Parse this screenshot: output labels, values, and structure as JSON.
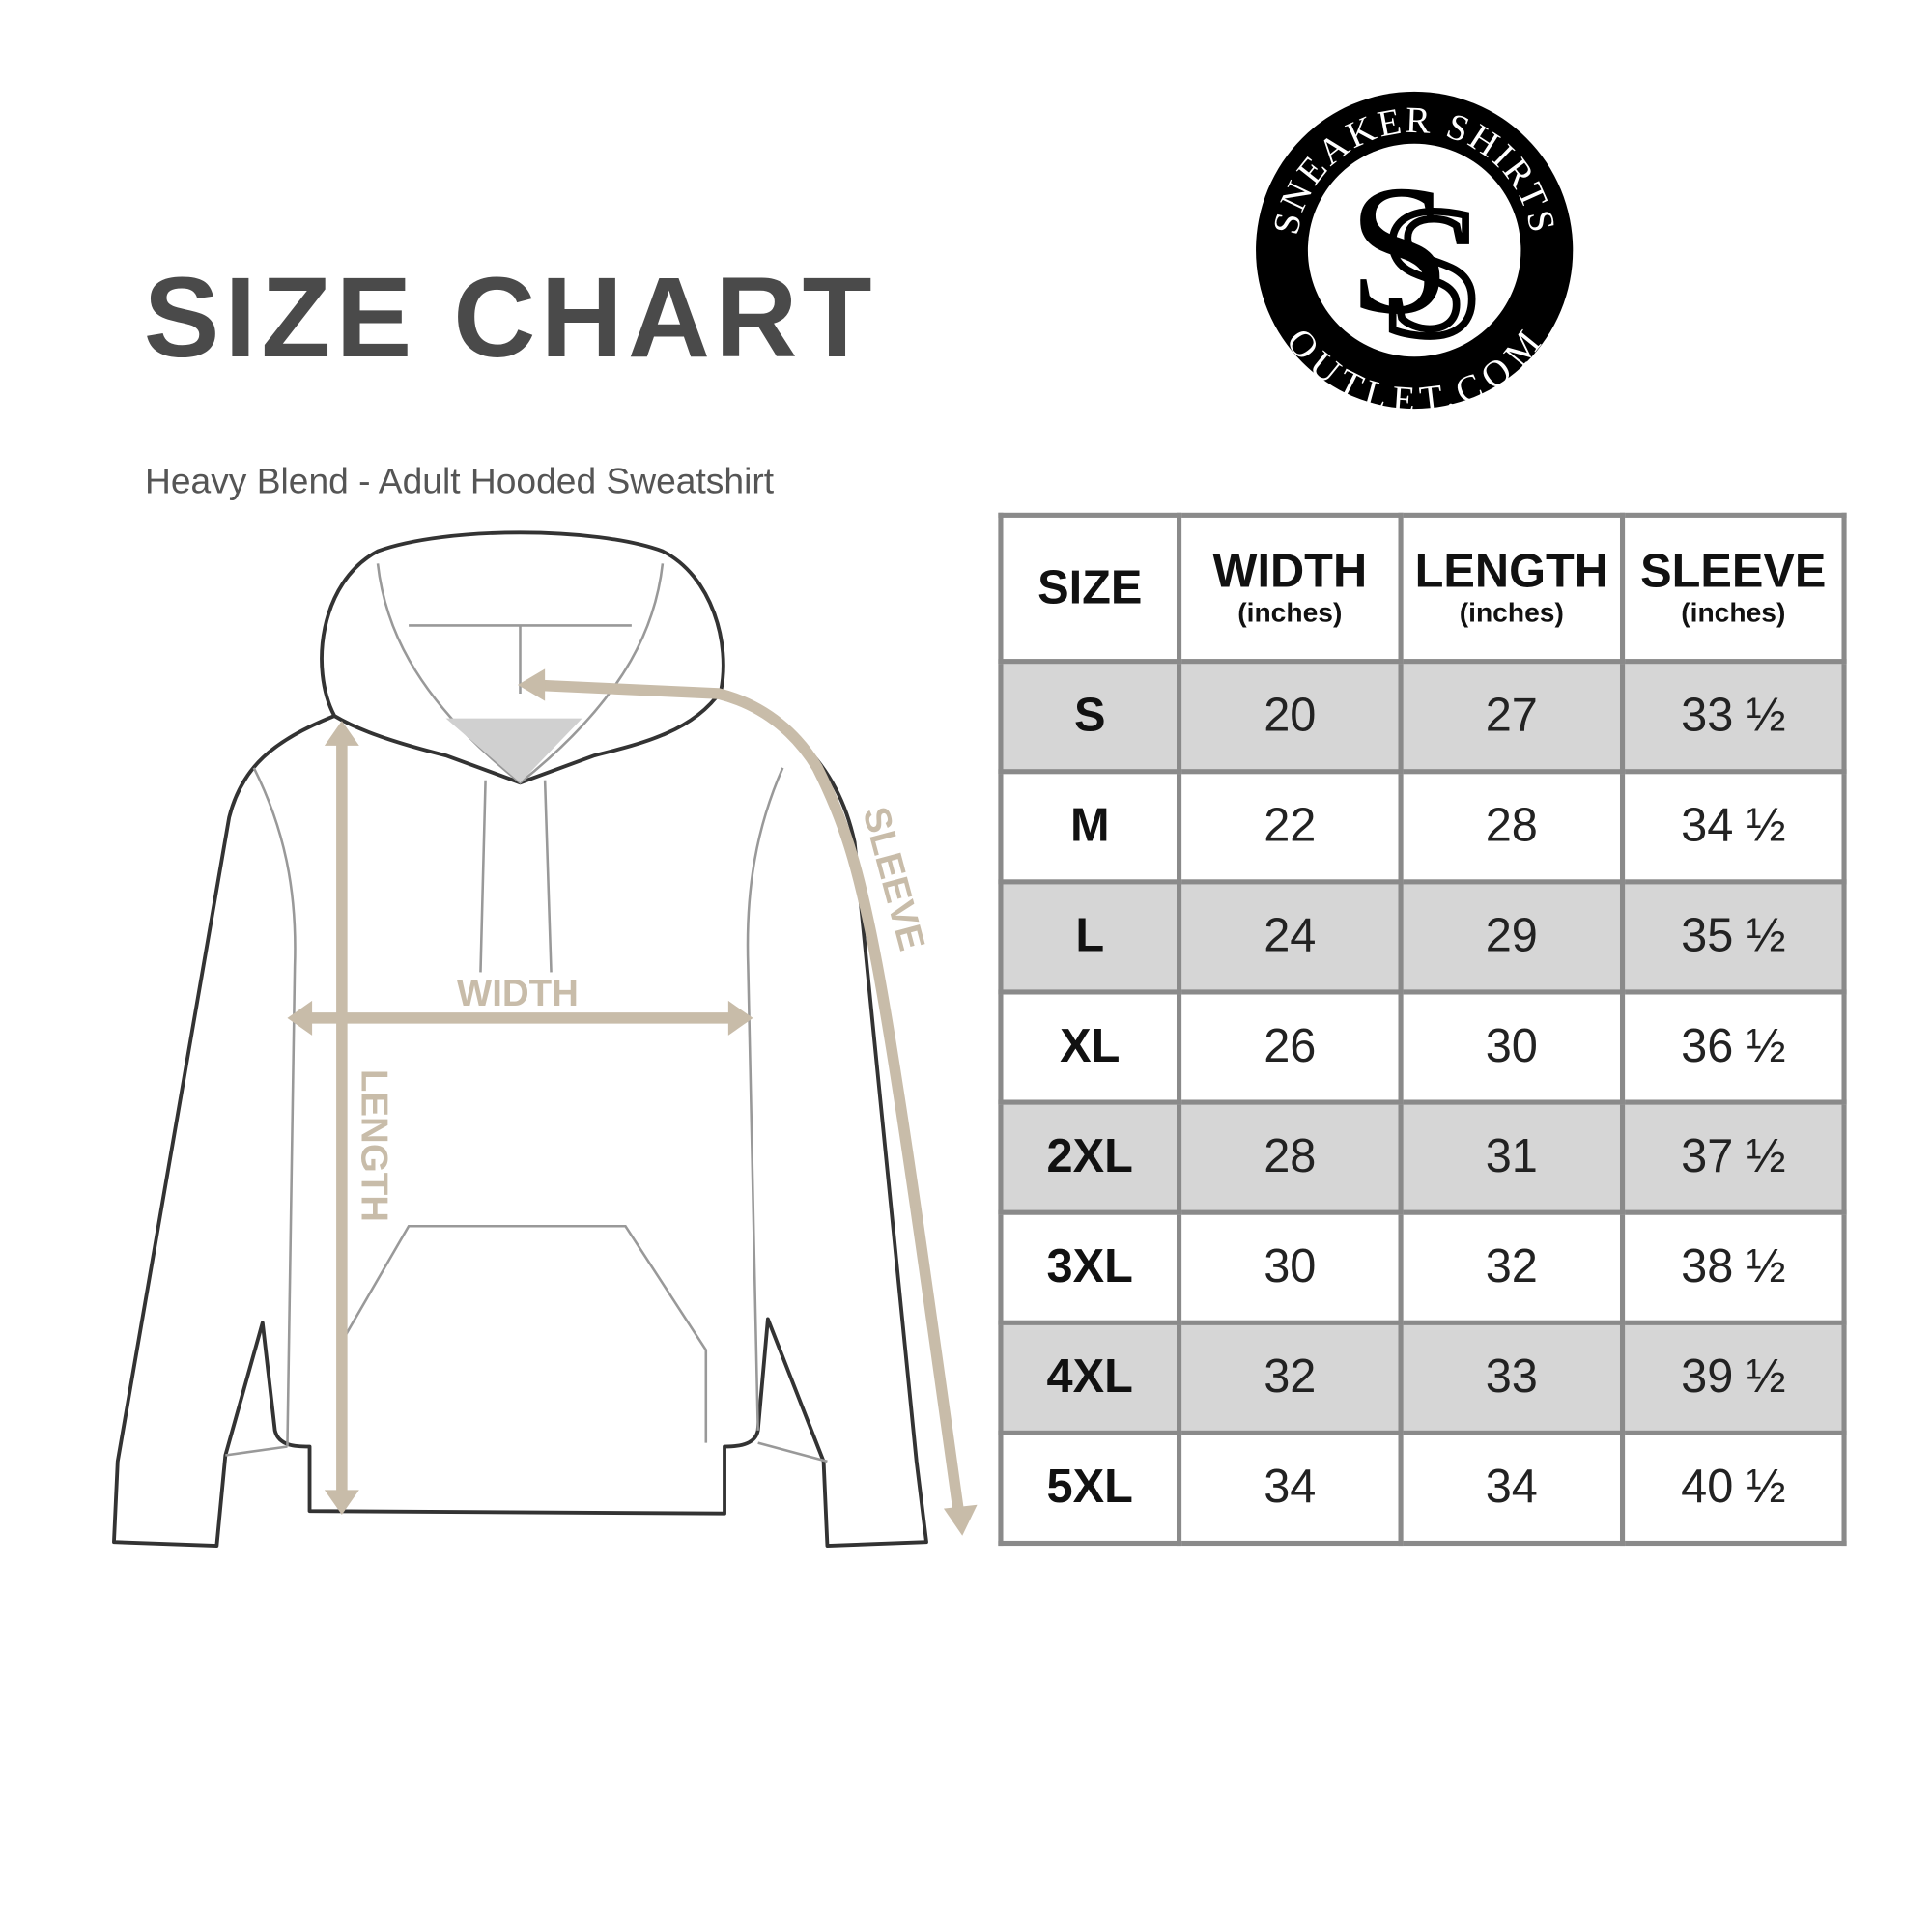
{
  "title": "SIZE CHART",
  "subtitle": "Heavy Blend - Adult Hooded Sweatshirt",
  "logo": {
    "top_text": "SNEAKER SHIRTS",
    "bottom_text": "OUTLET.COM",
    "monogram": "SS"
  },
  "diagram": {
    "labels": {
      "width": "WIDTH",
      "length": "LENGTH",
      "sleeve": "SLEEVE"
    },
    "arrow_color": "#c8bca9"
  },
  "table": {
    "headers": [
      {
        "label": "SIZE",
        "unit": ""
      },
      {
        "label": "WIDTH",
        "unit": "(inches)"
      },
      {
        "label": "LENGTH",
        "unit": "(inches)"
      },
      {
        "label": "SLEEVE",
        "unit": "(inches)"
      }
    ],
    "rows": [
      [
        "S",
        "20",
        "27",
        "33 ½"
      ],
      [
        "M",
        "22",
        "28",
        "34 ½"
      ],
      [
        "L",
        "24",
        "29",
        "35 ½"
      ],
      [
        "XL",
        "26",
        "30",
        "36 ½"
      ],
      [
        "2XL",
        "28",
        "31",
        "37 ½"
      ],
      [
        "3XL",
        "30",
        "32",
        "38 ½"
      ],
      [
        "4XL",
        "32",
        "33",
        "39 ½"
      ],
      [
        "5XL",
        "34",
        "34",
        "40 ½"
      ]
    ],
    "stripe_color": "#d6d6d6",
    "border_color": "#8a8a8a"
  }
}
